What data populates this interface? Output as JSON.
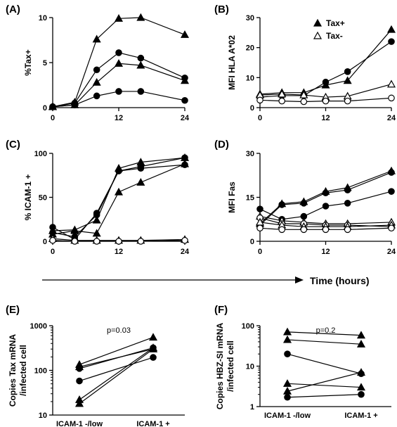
{
  "time_axis_label": "Time (hours)",
  "chart_data": [
    {
      "id": "A",
      "panel_label": "(A)",
      "type": "line",
      "title": "",
      "xlabel": "",
      "ylabel": "%Tax+",
      "xlim": [
        0,
        24
      ],
      "ylim": [
        0,
        10
      ],
      "xticks": [
        0,
        12,
        24
      ],
      "yticks": [
        0,
        5,
        10
      ],
      "series": [
        {
          "marker": "triangle-filled",
          "x": [
            0,
            4,
            8,
            12,
            16,
            24
          ],
          "y": [
            0.1,
            0.6,
            7.6,
            9.9,
            10.0,
            8.1
          ]
        },
        {
          "marker": "circle-filled",
          "x": [
            0,
            4,
            8,
            12,
            16,
            24
          ],
          "y": [
            0.1,
            0.5,
            4.2,
            6.1,
            5.5,
            3.3
          ]
        },
        {
          "marker": "triangle-filled",
          "x": [
            0,
            4,
            8,
            12,
            16,
            24
          ],
          "y": [
            0.1,
            0.3,
            2.8,
            4.9,
            4.7,
            3.0
          ]
        },
        {
          "marker": "circle-filled",
          "x": [
            0,
            4,
            8,
            12,
            16,
            24
          ],
          "y": [
            0.1,
            0.3,
            1.3,
            1.8,
            1.8,
            0.8
          ]
        }
      ]
    },
    {
      "id": "B",
      "panel_label": "(B)",
      "type": "line",
      "title": "",
      "xlabel": "",
      "ylabel": "MFI HLA A*02",
      "xlim": [
        0,
        24
      ],
      "ylim": [
        0,
        30
      ],
      "xticks": [
        0,
        12,
        24
      ],
      "yticks": [
        0,
        10,
        20,
        30
      ],
      "ytick_labels": [
        "0",
        "10",
        "20",
        "30"
      ],
      "legend": {
        "placement": "top-right",
        "entries": [
          {
            "label": "Tax+",
            "marker": "triangle-filled"
          },
          {
            "label": "Tax-",
            "marker": "triangle-open"
          }
        ]
      },
      "series": [
        {
          "marker": "triangle-filled",
          "x": [
            0,
            4,
            8,
            12,
            16,
            24
          ],
          "y": [
            4.5,
            5.0,
            5.0,
            7.5,
            9.0,
            26.0
          ]
        },
        {
          "marker": "circle-filled",
          "x": [
            0,
            4,
            8,
            12,
            16,
            24
          ],
          "y": [
            3.5,
            4.0,
            4.0,
            8.5,
            12.0,
            22.0
          ]
        },
        {
          "marker": "triangle-open",
          "x": [
            0,
            4,
            8,
            12,
            16,
            24
          ],
          "y": [
            4.2,
            4.5,
            4.2,
            3.5,
            3.8,
            7.8
          ]
        },
        {
          "marker": "circle-open",
          "x": [
            0,
            4,
            8,
            12,
            16,
            24
          ],
          "y": [
            2.5,
            2.2,
            2.0,
            2.2,
            2.2,
            3.2
          ]
        }
      ]
    },
    {
      "id": "C",
      "panel_label": "(C)",
      "type": "line",
      "title": "",
      "xlabel": "",
      "ylabel": "% ICAM-1 +",
      "xlim": [
        0,
        24
      ],
      "ylim": [
        0,
        100
      ],
      "xticks": [
        0,
        12,
        24
      ],
      "yticks": [
        0,
        50,
        100
      ],
      "series": [
        {
          "marker": "triangle-filled",
          "x": [
            0,
            4,
            8,
            12,
            16,
            24
          ],
          "y": [
            12,
            13,
            24,
            83,
            90,
            95
          ]
        },
        {
          "marker": "circle-filled",
          "x": [
            0,
            4,
            8,
            12,
            16,
            24
          ],
          "y": [
            16,
            2,
            32,
            80,
            85,
            95
          ]
        },
        {
          "marker": "triangle-filled",
          "x": [
            0,
            4,
            8,
            12,
            16,
            24
          ],
          "y": [
            8,
            12,
            9,
            56,
            67,
            88
          ]
        },
        {
          "marker": "circle-filled",
          "x": [
            0,
            4,
            8,
            12,
            16,
            24
          ],
          "y": [
            10,
            5,
            30,
            80,
            83,
            87
          ]
        },
        {
          "marker": "triangle-open",
          "x": [
            0,
            4,
            8,
            12,
            16,
            24
          ],
          "y": [
            3,
            1,
            1,
            1,
            1,
            2
          ]
        },
        {
          "marker": "circle-open",
          "x": [
            0,
            4,
            8,
            12,
            16,
            24
          ],
          "y": [
            1,
            0,
            0,
            0,
            0,
            1
          ]
        }
      ]
    },
    {
      "id": "D",
      "panel_label": "(D)",
      "type": "line",
      "title": "",
      "xlabel": "",
      "ylabel": "MFI Fas",
      "xlim": [
        0,
        24
      ],
      "ylim": [
        0,
        30
      ],
      "xticks": [
        0,
        12,
        24
      ],
      "yticks": [
        0,
        15,
        30
      ],
      "series": [
        {
          "marker": "triangle-filled",
          "x": [
            0,
            4,
            8,
            12,
            16,
            24
          ],
          "y": [
            6.0,
            12.8,
            13.5,
            17.0,
            18.3,
            24.0
          ]
        },
        {
          "marker": "circle-filled",
          "x": [
            0,
            4,
            8,
            12,
            16,
            24
          ],
          "y": [
            5.5,
            12.5,
            13.0,
            16.5,
            17.5,
            23.5
          ]
        },
        {
          "marker": "circle-filled",
          "x": [
            0,
            4,
            8,
            12,
            16,
            24
          ],
          "y": [
            11.0,
            7.5,
            8.5,
            12.0,
            13.0,
            17.0
          ]
        },
        {
          "marker": "triangle-open",
          "x": [
            0,
            4,
            8,
            12,
            16,
            24
          ],
          "y": [
            8.5,
            7.0,
            6.5,
            6.0,
            6.0,
            6.5
          ]
        },
        {
          "marker": "circle-open",
          "x": [
            0,
            4,
            8,
            12,
            16,
            24
          ],
          "y": [
            8.0,
            6.0,
            6.0,
            5.5,
            5.5,
            5.0
          ]
        },
        {
          "marker": "triangle-open",
          "x": [
            0,
            4,
            8,
            12,
            16,
            24
          ],
          "y": [
            6.5,
            5.5,
            5.0,
            5.0,
            5.0,
            5.5
          ]
        },
        {
          "marker": "circle-open",
          "x": [
            0,
            4,
            8,
            12,
            16,
            24
          ],
          "y": [
            4.5,
            4.0,
            4.0,
            4.0,
            4.0,
            4.5
          ]
        }
      ]
    },
    {
      "id": "E",
      "panel_label": "(E)",
      "type": "line",
      "title": "",
      "xlabel": "",
      "ylabel": "Copies Tax mRNA /infected cell",
      "ylabel_lines": [
        "Copies Tax mRNA",
        "/infected cell"
      ],
      "y_scale": "log",
      "ylim": [
        10,
        1000
      ],
      "yticks": [
        10,
        100,
        1000
      ],
      "categories": [
        "ICAM-1 -/low",
        "ICAM-1 +"
      ],
      "annotation": "p=0.03",
      "series": [
        {
          "marker": "triangle-filled",
          "values": [
            135,
            550
          ]
        },
        {
          "marker": "triangle-filled",
          "values": [
            120,
            300
          ]
        },
        {
          "marker": "circle-filled",
          "values": [
            110,
            320
          ]
        },
        {
          "marker": "circle-filled",
          "values": [
            58,
            195
          ]
        },
        {
          "marker": "triangle-filled",
          "values": [
            22,
            320
          ]
        },
        {
          "marker": "triangle-filled",
          "values": [
            18,
            300
          ]
        }
      ]
    },
    {
      "id": "F",
      "panel_label": "(F)",
      "type": "line",
      "title": "",
      "xlabel": "",
      "ylabel": "Copies HBZ-SI mRNA /infected cell",
      "ylabel_lines": [
        "Copies HBZ-SI mRNA",
        "/infected cell"
      ],
      "y_scale": "log",
      "ylim": [
        1,
        100
      ],
      "yticks": [
        1,
        10,
        100
      ],
      "categories": [
        "ICAM-1 -/low",
        "ICAM-1 +"
      ],
      "annotation": "p=0.2",
      "series": [
        {
          "marker": "triangle-filled",
          "values": [
            70,
            58
          ]
        },
        {
          "marker": "triangle-filled",
          "values": [
            45,
            35
          ]
        },
        {
          "marker": "circle-filled",
          "values": [
            20,
            6.5
          ]
        },
        {
          "marker": "triangle-filled",
          "values": [
            3.7,
            3.0
          ]
        },
        {
          "marker": "triangle-filled",
          "values": [
            2.4,
            7.0
          ]
        },
        {
          "marker": "circle-filled",
          "values": [
            1.7,
            2.0
          ]
        }
      ]
    }
  ]
}
